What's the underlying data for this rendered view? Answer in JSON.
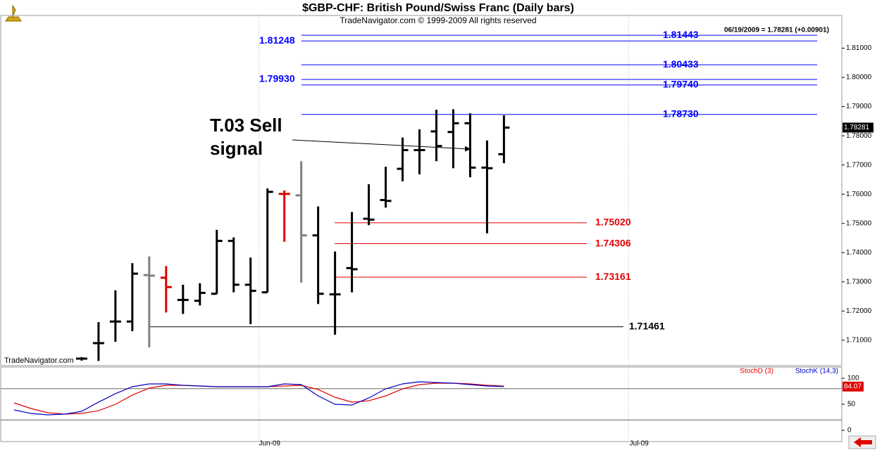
{
  "chart_data": [
    {
      "type": "ohlc",
      "title": "$GBP-CHF:  British Pound/Swiss Franc  (Daily bars)",
      "subtitle": "TradeNavigator.com © 1999-2009 All rights reserved",
      "info": "06/19/2009 = 1.78281 (+0.00901)",
      "watermark": "TradeNavigator.com",
      "annotation": [
        "T.03 Sell",
        "signal"
      ],
      "x": [
        4,
        5,
        6,
        7,
        8,
        9,
        10,
        11,
        12,
        13,
        14,
        15,
        16,
        17,
        18,
        19,
        20,
        21,
        22,
        23,
        24,
        25,
        26,
        27,
        28,
        29
      ],
      "open": [
        1.7037,
        1.709,
        1.7164,
        1.7164,
        1.7323,
        1.7314,
        1.7238,
        1.7235,
        1.7259,
        1.744,
        1.729,
        1.7264,
        1.7601,
        1.7596,
        1.7459,
        1.7257,
        1.7347,
        1.7516,
        1.758,
        1.7687,
        1.7751,
        1.7815,
        1.7813,
        1.7843,
        1.7691,
        1.7737
      ],
      "high": [
        1.7042,
        1.7162,
        1.7271,
        1.7364,
        1.7387,
        1.7354,
        1.729,
        1.7295,
        1.7478,
        1.7452,
        1.7383,
        1.762,
        1.7613,
        1.7713,
        1.7558,
        1.7404,
        1.7539,
        1.7634,
        1.7694,
        1.7794,
        1.7822,
        1.7889,
        1.7891,
        1.7877,
        1.7784,
        1.787
      ],
      "low": [
        1.703,
        1.7029,
        1.7095,
        1.7131,
        1.7076,
        1.7195,
        1.719,
        1.7219,
        1.7259,
        1.7264,
        1.7155,
        1.7264,
        1.7437,
        1.7297,
        1.7224,
        1.7119,
        1.7264,
        1.7494,
        1.7554,
        1.7644,
        1.7668,
        1.7713,
        1.7689,
        1.7658,
        1.7466,
        1.7706
      ],
      "close": [
        1.7037,
        1.709,
        1.7164,
        1.7328,
        1.7321,
        1.7282,
        1.7238,
        1.7262,
        1.744,
        1.729,
        1.7269,
        1.7608,
        1.7601,
        1.7459,
        1.7259,
        1.7257,
        1.7343,
        1.7513,
        1.7577,
        1.7751,
        1.7751,
        1.7765,
        1.7843,
        1.7691,
        1.7689,
        1.78281
      ],
      "colors": [
        "#000",
        "#000",
        "#000",
        "#000",
        "#808080",
        "#e00000",
        "#000",
        "#000",
        "#000",
        "#000",
        "#000",
        "#000",
        "#e00000",
        "#808080",
        "#000",
        "#000",
        "#000",
        "#000",
        "#000",
        "#000",
        "#000",
        "#000",
        "#000",
        "#000",
        "#000",
        "#000"
      ],
      "levels": [
        {
          "value": 1.81443,
          "label": "1.81443",
          "color": "#0000ff"
        },
        {
          "value": 1.81248,
          "label": "1.81248",
          "color": "#0000ff"
        },
        {
          "value": 1.80433,
          "label": "1.80433",
          "color": "#0000ff"
        },
        {
          "value": 1.7993,
          "label": "1.79930",
          "color": "#0000ff"
        },
        {
          "value": 1.7974,
          "label": "1.79740",
          "color": "#0000ff"
        },
        {
          "value": 1.7873,
          "label": "1.78730",
          "color": "#0000ff"
        },
        {
          "value": 1.7502,
          "label": "1.75020",
          "color": "#e00000"
        },
        {
          "value": 1.74306,
          "label": "1.74306",
          "color": "#e00000"
        },
        {
          "value": 1.73161,
          "label": "1.73161",
          "color": "#e00000"
        },
        {
          "value": 1.71461,
          "label": "1.71461",
          "color": "#000000"
        }
      ],
      "xlim": [
        -0.5,
        49
      ],
      "xticks": [
        {
          "value": 14.5,
          "label": "Jun-09"
        },
        {
          "value": 36.375,
          "label": "Jul-09"
        }
      ],
      "ylim": [
        1.7013,
        1.8212
      ],
      "yticks": [
        {
          "value": 1.71,
          "label": "1.71000"
        },
        {
          "value": 1.72,
          "label": "1.72000"
        },
        {
          "value": 1.73,
          "label": "1.73000"
        },
        {
          "value": 1.74,
          "label": "1.74000"
        },
        {
          "value": 1.75,
          "label": "1.75000"
        },
        {
          "value": 1.76,
          "label": "1.76000"
        },
        {
          "value": 1.77,
          "label": "1.77000"
        },
        {
          "value": 1.78,
          "label": "1.78000"
        },
        {
          "value": 1.79,
          "label": "1.79000"
        },
        {
          "value": 1.8,
          "label": "1.80000"
        },
        {
          "value": 1.81,
          "label": "1.81000"
        }
      ]
    },
    {
      "type": "line",
      "x": [
        0,
        1,
        2,
        3,
        4,
        5,
        6,
        7,
        8,
        9,
        10,
        11,
        12,
        13,
        14,
        15,
        16,
        17,
        18,
        19,
        20,
        21,
        22,
        23,
        24,
        25,
        26,
        27,
        28,
        29
      ],
      "series": [
        {
          "name": "StochD (3)",
          "color": "#e00000",
          "values": [
            52.7,
            41.9,
            33.8,
            31.1,
            32.4,
            37.8,
            50,
            67.6,
            81.1,
            86.5,
            86.5,
            85.1,
            83.8,
            83.8,
            83.8,
            83.8,
            85.1,
            86.5,
            78.4,
            63.5,
            54.1,
            56.8,
            66.2,
            79.7,
            87.8,
            90.5,
            90.5,
            89.2,
            86.5,
            85
          ]
        },
        {
          "name": "StochK (14,3)",
          "color": "#0000c0",
          "values": [
            39.2,
            32.4,
            29.7,
            31.1,
            36.5,
            54.1,
            70.3,
            83.8,
            89.2,
            89.2,
            86.5,
            85.1,
            83.8,
            83.8,
            83.8,
            83.8,
            89.2,
            87.8,
            66.2,
            50,
            48.6,
            62.2,
            79.7,
            89.2,
            93.2,
            91.9,
            90.5,
            87.8,
            85.1,
            84.07
          ]
        }
      ],
      "levels": [
        20,
        80
      ],
      "xlim": [
        -0.5,
        49
      ],
      "ylim": [
        -21.6,
        121.6
      ],
      "yticks": [
        0,
        50,
        100
      ]
    }
  ]
}
